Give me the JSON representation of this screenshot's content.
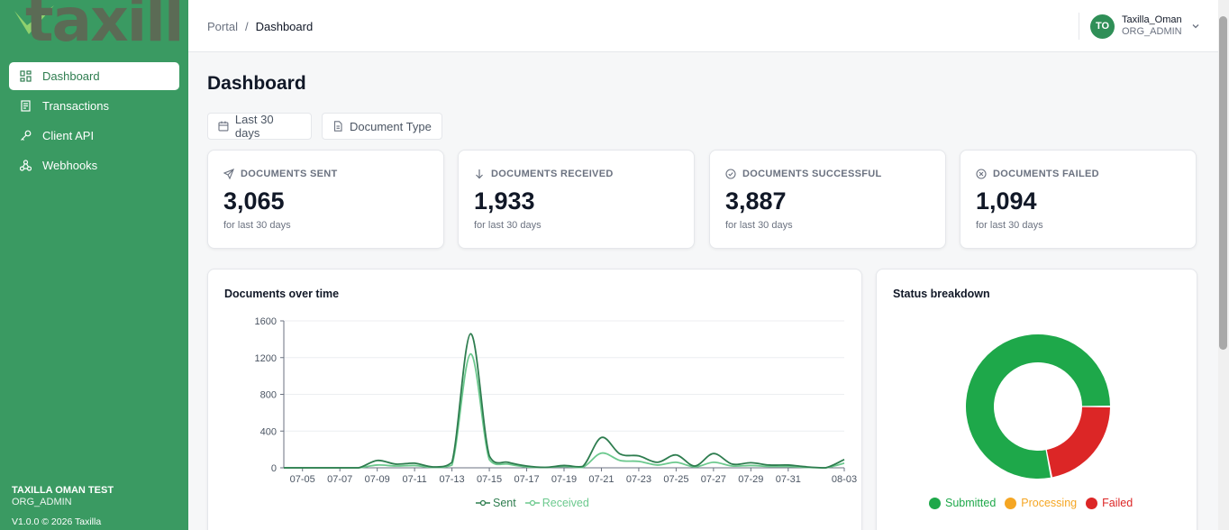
{
  "brand": {
    "logo_text": "taxilla"
  },
  "sidebar": {
    "items": [
      {
        "label": "Dashboard",
        "icon": "grid-icon",
        "active": true
      },
      {
        "label": "Transactions",
        "icon": "document-list-icon",
        "active": false
      },
      {
        "label": "Client API",
        "icon": "key-icon",
        "active": false
      },
      {
        "label": "Webhooks",
        "icon": "webhook-icon",
        "active": false
      }
    ],
    "org_name": "TAXILLA OMAN TEST",
    "org_role": "ORG_ADMIN",
    "version": "V1.0.0 © 2026 Taxilla"
  },
  "header": {
    "breadcrumb": [
      "Portal",
      "Dashboard"
    ],
    "user": {
      "initials": "TO",
      "name": "Taxilla_Oman",
      "role": "ORG_ADMIN"
    }
  },
  "main": {
    "title": "Dashboard",
    "filters": {
      "date_range": "Last 30 days",
      "doc_type": "Document Type"
    },
    "stats": [
      {
        "label": "DOCUMENTS SENT",
        "value": "3,065",
        "sub": "for last 30 days",
        "icon": "send-icon"
      },
      {
        "label": "DOCUMENTS RECEIVED",
        "value": "1,933",
        "sub": "for last 30 days",
        "icon": "arrow-down-icon"
      },
      {
        "label": "DOCUMENTS SUCCESSFUL",
        "value": "3,887",
        "sub": "for last 30 days",
        "icon": "check-circle-icon"
      },
      {
        "label": "DOCUMENTS FAILED",
        "value": "1,094",
        "sub": "for last 30 days",
        "icon": "x-circle-icon"
      }
    ]
  },
  "colors": {
    "sidebar": "#3a9a62",
    "sent": "#2e7d4f",
    "received": "#6cc98e",
    "submitted": "#1ea84a",
    "processing": "#f5a623",
    "failed": "#dc2626"
  },
  "chart_data": [
    {
      "type": "line",
      "title": "Documents over time",
      "ylim": [
        0,
        1600
      ],
      "yticks": [
        0,
        400,
        800,
        1200,
        1600
      ],
      "x": [
        "07-04",
        "07-05",
        "07-06",
        "07-07",
        "07-08",
        "07-09",
        "07-10",
        "07-11",
        "07-12",
        "07-13",
        "07-14",
        "07-15",
        "07-16",
        "07-17",
        "07-18",
        "07-19",
        "07-20",
        "07-21",
        "07-22",
        "07-23",
        "07-24",
        "07-25",
        "07-26",
        "07-27",
        "07-28",
        "07-29",
        "07-30",
        "07-31",
        "08-01",
        "08-02",
        "08-03"
      ],
      "xtick_labels": [
        "07-05",
        "07-07",
        "07-09",
        "07-11",
        "07-13",
        "07-15",
        "07-17",
        "07-19",
        "07-21",
        "07-23",
        "07-25",
        "07-27",
        "07-29",
        "07-31",
        "08-03"
      ],
      "series": [
        {
          "name": "Sent",
          "values": [
            0,
            0,
            0,
            0,
            0,
            80,
            40,
            50,
            10,
            60,
            1460,
            130,
            60,
            20,
            5,
            25,
            15,
            330,
            150,
            130,
            60,
            140,
            20,
            155,
            40,
            55,
            30,
            30,
            10,
            0,
            90
          ]
        },
        {
          "name": "Received",
          "values": [
            0,
            0,
            0,
            0,
            0,
            30,
            20,
            25,
            5,
            30,
            1240,
            90,
            40,
            10,
            5,
            15,
            5,
            160,
            80,
            70,
            30,
            60,
            10,
            60,
            20,
            25,
            15,
            15,
            5,
            0,
            50
          ]
        }
      ]
    },
    {
      "type": "pie",
      "title": "Status breakdown",
      "categories": [
        "Submitted",
        "Processing",
        "Failed"
      ],
      "values": [
        78,
        0,
        22
      ]
    }
  ]
}
